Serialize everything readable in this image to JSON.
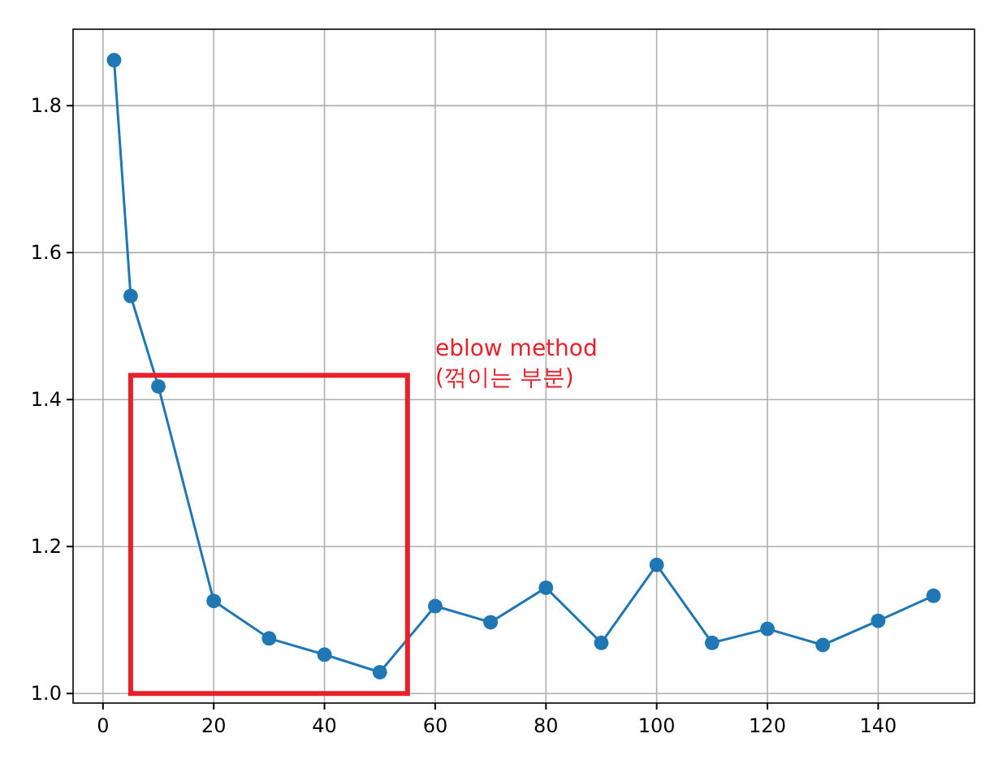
{
  "chart_data": {
    "type": "line",
    "x": [
      2,
      5,
      10,
      20,
      30,
      40,
      50,
      60,
      70,
      80,
      90,
      100,
      110,
      120,
      130,
      140,
      150
    ],
    "series": [
      {
        "color": "#1f77b4",
        "values": [
          1.862,
          1.541,
          1.418,
          1.126,
          1.075,
          1.053,
          1.029,
          1.119,
          1.097,
          1.144,
          1.069,
          1.175,
          1.069,
          1.088,
          1.066,
          1.099,
          1.133
        ]
      }
    ],
    "xlim": [
      -5.4,
      157.4
    ],
    "ylim": [
      0.987,
      1.904
    ],
    "xticks": [
      0,
      20,
      40,
      60,
      80,
      100,
      120,
      140
    ],
    "yticks": [
      {
        "value": 1,
        "label": "1.0"
      },
      {
        "value": 1.2,
        "label": "1.2"
      },
      {
        "value": 1.4,
        "label": "1.4"
      },
      {
        "value": 1.6,
        "label": "1.6"
      },
      {
        "value": 1.8,
        "label": "1.8"
      }
    ],
    "grid": true,
    "marker": "circle",
    "line_style": "solid",
    "annotations": [
      "eblow method\n(꺾이는 부분)"
    ]
  }
}
